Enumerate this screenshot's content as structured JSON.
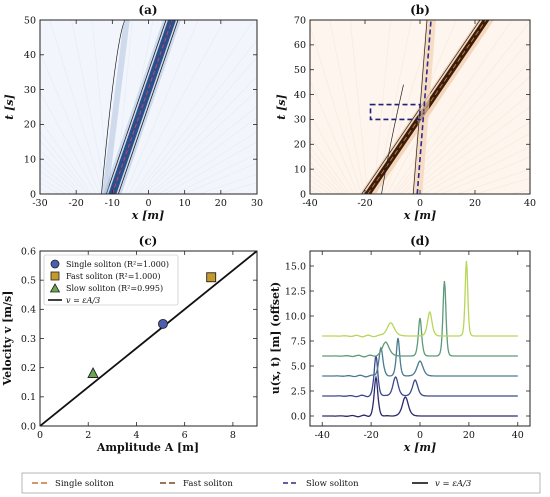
{
  "legend_bottom": [
    {
      "label": "Single soliton",
      "color": "#c8743a",
      "dash": "6,3"
    },
    {
      "label": "Fast soliton",
      "color": "#7a4a22",
      "dash": "6,3"
    },
    {
      "label": "Slow soliton",
      "color": "#2b2b8c",
      "dash": "5,3"
    },
    {
      "label": "v = εA/3",
      "color": "#111111",
      "dash": ""
    }
  ],
  "chart_data": [
    {
      "id": "a",
      "type": "heatmap",
      "title": "(a)",
      "xlabel": "x [m]",
      "ylabel": "t [s]",
      "xlim": [
        -30,
        30
      ],
      "ylim": [
        0,
        50
      ],
      "xticks": [
        -30,
        -20,
        -10,
        0,
        10,
        20,
        30
      ],
      "yticks": [
        0,
        10,
        20,
        30,
        40,
        50
      ],
      "colormap": "blues",
      "soliton_track": {
        "x_at_t0": -10,
        "x_at_t50": 6.5
      }
    },
    {
      "id": "b",
      "type": "heatmap",
      "title": "(b)",
      "xlabel": "x [m]",
      "ylabel": "t [s]",
      "xlim": [
        -40,
        40
      ],
      "ylim": [
        0,
        70
      ],
      "xticks": [
        -40,
        -20,
        0,
        20,
        40
      ],
      "yticks": [
        0,
        10,
        20,
        30,
        40,
        50,
        60,
        70
      ],
      "colormap": "oranges",
      "fast_track": {
        "x_at_t0": -19,
        "x_at_t70": 24
      },
      "slow_track": {
        "x_at_t0": -1,
        "x_at_t70": 4
      },
      "interaction_box": {
        "x": [
          -18,
          0
        ],
        "t": [
          30,
          36
        ]
      }
    },
    {
      "id": "c",
      "type": "scatter",
      "title": "(c)",
      "xlabel": "Amplitude A [m]",
      "ylabel": "Velocity v [m/s]",
      "xlim": [
        0,
        9
      ],
      "ylim": [
        0,
        0.6
      ],
      "xticks": [
        0,
        2,
        4,
        6,
        8
      ],
      "yticks": [
        0.0,
        0.1,
        0.2,
        0.3,
        0.4,
        0.5,
        0.6
      ],
      "series": [
        {
          "name": "Single soliton (R²=1.000)",
          "marker": "circle",
          "color": "#4a5fb0",
          "x": [
            5.1
          ],
          "y": [
            0.35
          ]
        },
        {
          "name": "Fast soliton (R²=1.000)",
          "marker": "square",
          "color": "#c49a2a",
          "x": [
            7.1
          ],
          "y": [
            0.51
          ]
        },
        {
          "name": "Slow soliton (R²=0.995)",
          "marker": "triangle",
          "color": "#6aa84f",
          "x": [
            2.2
          ],
          "y": [
            0.18
          ]
        }
      ],
      "fit_line": {
        "name": "v = εA/3",
        "slope": 0.0667,
        "intercept": 0
      }
    },
    {
      "id": "d",
      "type": "line",
      "title": "(d)",
      "xlabel": "x [m]",
      "ylabel": "u(x, t) [m] (offset)",
      "xlim": [
        -45,
        45
      ],
      "ylim": [
        -1,
        16.5
      ],
      "xticks": [
        -40,
        -20,
        0,
        20,
        40
      ],
      "yticks": [
        0.0,
        2.5,
        5.0,
        7.5,
        10.0,
        12.5,
        15.0
      ],
      "series": [
        {
          "offset": 0,
          "color": "#2b2a6b",
          "peaks": [
            {
              "x": -18,
              "a": 3.8,
              "w": 1.0
            },
            {
              "x": -6,
              "a": 1.9,
              "w": 1.6
            }
          ]
        },
        {
          "offset": 2,
          "color": "#3b4a8c",
          "peaks": [
            {
              "x": -18,
              "a": 4.0,
              "w": 1.0
            },
            {
              "x": -10,
              "a": 1.9,
              "w": 1.4
            },
            {
              "x": -2,
              "a": 1.6,
              "w": 1.4
            }
          ]
        },
        {
          "offset": 4,
          "color": "#4a7a90",
          "peaks": [
            {
              "x": -16,
              "a": 2.8,
              "w": 1.1
            },
            {
              "x": -9,
              "a": 3.8,
              "w": 0.9
            },
            {
              "x": 0,
              "a": 1.5,
              "w": 1.6
            }
          ]
        },
        {
          "offset": 6,
          "color": "#5e9a7a",
          "peaks": [
            {
              "x": -14,
              "a": 1.4,
              "w": 1.8
            },
            {
              "x": 0,
              "a": 3.8,
              "w": 0.9
            },
            {
              "x": 10,
              "a": 7.5,
              "w": 0.8
            }
          ]
        },
        {
          "offset": 8,
          "color": "#b7d65a",
          "peaks": [
            {
              "x": -12,
              "a": 1.3,
              "w": 2.0
            },
            {
              "x": 4,
              "a": 2.4,
              "w": 1.2
            },
            {
              "x": 19,
              "a": 7.5,
              "w": 0.7
            }
          ]
        }
      ]
    }
  ]
}
